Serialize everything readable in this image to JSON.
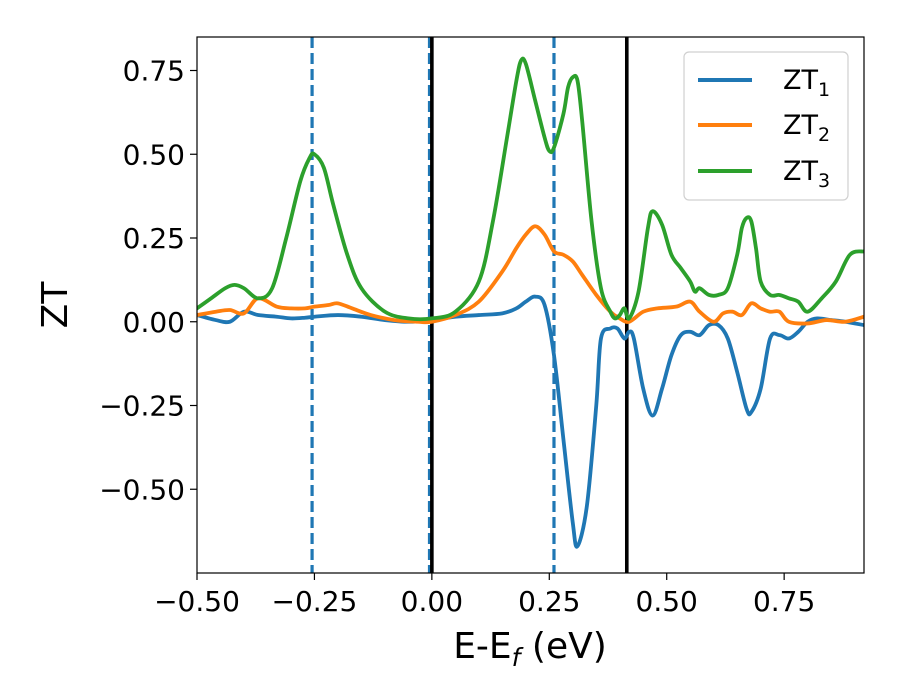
{
  "chart_data": {
    "type": "line",
    "xlabel": "E-E",
    "xlabel_sub": "f",
    "xlabel_unit": " (eV)",
    "ylabel": "ZT",
    "xlim": [
      -0.5,
      0.92
    ],
    "ylim": [
      -0.75,
      0.85
    ],
    "xticks": [
      -0.5,
      -0.25,
      0.0,
      0.25,
      0.5,
      0.75
    ],
    "xtick_labels": [
      "−0.50",
      "−0.25",
      "0.00",
      "0.25",
      "0.50",
      "0.75"
    ],
    "yticks": [
      -0.5,
      -0.25,
      0.0,
      0.25,
      0.5,
      0.75
    ],
    "ytick_labels": [
      "−0.50",
      "−0.25",
      "0.00",
      "0.25",
      "0.50",
      "0.75"
    ],
    "legend_position": "top-right",
    "vlines_dashed": {
      "color": "#1f77b4",
      "x": [
        -0.255,
        -0.005,
        0.26
      ]
    },
    "vlines_solid": {
      "color": "#000000",
      "x": [
        0.0,
        0.415
      ]
    },
    "series": [
      {
        "name": "ZT",
        "name_sub": "1",
        "color": "#1f77b4",
        "x": [
          -0.5,
          -0.46,
          -0.43,
          -0.4,
          -0.37,
          -0.33,
          -0.3,
          -0.27,
          -0.25,
          -0.2,
          -0.15,
          -0.1,
          -0.05,
          0.0,
          0.05,
          0.1,
          0.15,
          0.18,
          0.2,
          0.22,
          0.24,
          0.26,
          0.28,
          0.3,
          0.31,
          0.33,
          0.35,
          0.36,
          0.38,
          0.395,
          0.41,
          0.42,
          0.43,
          0.45,
          0.47,
          0.49,
          0.51,
          0.53,
          0.55,
          0.57,
          0.59,
          0.61,
          0.63,
          0.65,
          0.67,
          0.68,
          0.7,
          0.72,
          0.74,
          0.76,
          0.78,
          0.8,
          0.82,
          0.85,
          0.88,
          0.92
        ],
        "y": [
          0.02,
          0.005,
          0.0,
          0.03,
          0.02,
          0.015,
          0.01,
          0.012,
          0.015,
          0.02,
          0.015,
          0.005,
          0.0,
          0.005,
          0.015,
          0.02,
          0.025,
          0.04,
          0.06,
          0.075,
          0.05,
          -0.1,
          -0.35,
          -0.6,
          -0.67,
          -0.55,
          -0.25,
          -0.05,
          -0.02,
          -0.02,
          -0.05,
          -0.03,
          -0.05,
          -0.2,
          -0.28,
          -0.2,
          -0.1,
          -0.04,
          -0.03,
          -0.04,
          -0.01,
          -0.01,
          -0.05,
          -0.15,
          -0.26,
          -0.27,
          -0.2,
          -0.05,
          -0.04,
          -0.05,
          -0.03,
          0.0,
          0.01,
          0.005,
          0.0,
          -0.01
        ]
      },
      {
        "name": "ZT",
        "name_sub": "2",
        "color": "#ff7f0e",
        "x": [
          -0.5,
          -0.46,
          -0.43,
          -0.4,
          -0.37,
          -0.33,
          -0.3,
          -0.27,
          -0.25,
          -0.22,
          -0.2,
          -0.17,
          -0.13,
          -0.08,
          -0.03,
          0.0,
          0.05,
          0.1,
          0.15,
          0.18,
          0.2,
          0.22,
          0.24,
          0.26,
          0.28,
          0.3,
          0.32,
          0.35,
          0.38,
          0.4,
          0.42,
          0.45,
          0.48,
          0.52,
          0.55,
          0.57,
          0.6,
          0.62,
          0.64,
          0.66,
          0.68,
          0.7,
          0.72,
          0.74,
          0.76,
          0.8,
          0.84,
          0.88,
          0.92
        ],
        "y": [
          0.02,
          0.03,
          0.035,
          0.025,
          0.07,
          0.045,
          0.04,
          0.04,
          0.045,
          0.05,
          0.055,
          0.04,
          0.02,
          0.005,
          0.0,
          0.0,
          0.02,
          0.06,
          0.15,
          0.22,
          0.26,
          0.285,
          0.26,
          0.21,
          0.2,
          0.18,
          0.14,
          0.08,
          0.03,
          0.01,
          0.0,
          0.03,
          0.04,
          0.045,
          0.06,
          0.03,
          0.0,
          0.025,
          0.03,
          0.02,
          0.055,
          0.04,
          0.03,
          0.03,
          0.0,
          -0.005,
          0.005,
          0.0,
          0.015
        ]
      },
      {
        "name": "ZT",
        "name_sub": "3",
        "color": "#2ca02c",
        "x": [
          -0.5,
          -0.47,
          -0.44,
          -0.42,
          -0.4,
          -0.37,
          -0.34,
          -0.31,
          -0.28,
          -0.26,
          -0.25,
          -0.23,
          -0.21,
          -0.18,
          -0.15,
          -0.1,
          -0.05,
          0.0,
          0.05,
          0.1,
          0.13,
          0.16,
          0.18,
          0.19,
          0.2,
          0.22,
          0.24,
          0.25,
          0.26,
          0.28,
          0.29,
          0.3,
          0.31,
          0.32,
          0.34,
          0.36,
          0.38,
          0.39,
          0.4,
          0.41,
          0.42,
          0.44,
          0.46,
          0.47,
          0.49,
          0.51,
          0.53,
          0.55,
          0.56,
          0.57,
          0.59,
          0.61,
          0.63,
          0.65,
          0.66,
          0.67,
          0.68,
          0.69,
          0.7,
          0.72,
          0.74,
          0.76,
          0.78,
          0.8,
          0.83,
          0.86,
          0.89,
          0.92
        ],
        "y": [
          0.04,
          0.07,
          0.1,
          0.11,
          0.1,
          0.07,
          0.1,
          0.25,
          0.42,
          0.49,
          0.5,
          0.46,
          0.35,
          0.2,
          0.1,
          0.03,
          0.01,
          0.01,
          0.03,
          0.12,
          0.3,
          0.55,
          0.72,
          0.78,
          0.77,
          0.66,
          0.55,
          0.51,
          0.52,
          0.62,
          0.7,
          0.73,
          0.72,
          0.6,
          0.3,
          0.1,
          0.03,
          0.01,
          0.02,
          0.04,
          0.01,
          0.09,
          0.28,
          0.33,
          0.29,
          0.2,
          0.16,
          0.12,
          0.09,
          0.1,
          0.08,
          0.08,
          0.1,
          0.2,
          0.28,
          0.31,
          0.3,
          0.22,
          0.12,
          0.08,
          0.08,
          0.07,
          0.06,
          0.03,
          0.07,
          0.12,
          0.2,
          0.21
        ]
      }
    ]
  }
}
